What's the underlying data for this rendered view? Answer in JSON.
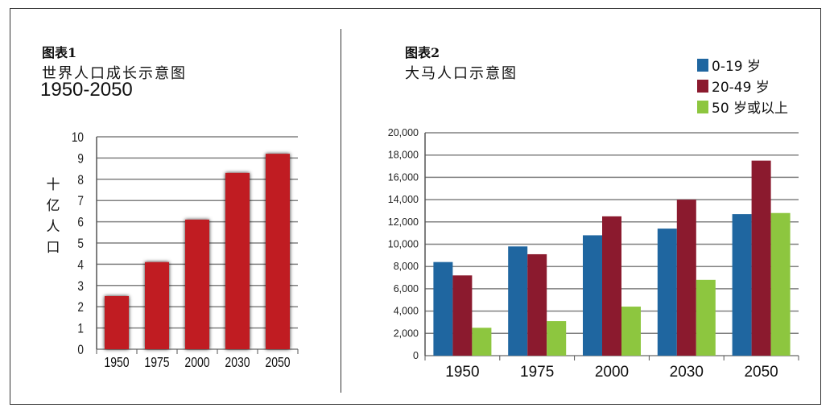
{
  "left_chart": {
    "figure_label": "图表1",
    "title": "世界人口成长示意图",
    "subtitle": "1950-2050",
    "ylabel_chars": [
      "十",
      "亿",
      "人",
      "口"
    ]
  },
  "right_chart": {
    "figure_label": "图表2",
    "title": "大马人口示意图"
  },
  "colors": {
    "left_bar": "#c01c24",
    "age_0_19": "#1f66a0",
    "age_20_49": "#8b1a2e",
    "age_50_plus": "#8dc63f",
    "grid": "#808080"
  },
  "chart_data": [
    {
      "type": "bar",
      "title": "世界人口成长示意图 1950-2050",
      "ylabel": "十亿人口",
      "categories": [
        "1950",
        "1975",
        "2000",
        "2030",
        "2050"
      ],
      "values": [
        2.5,
        4.1,
        6.1,
        8.3,
        9.2
      ],
      "ylim": [
        0,
        10
      ],
      "yticks": [
        "0",
        "1",
        "2",
        "3",
        "4",
        "5",
        "6",
        "7",
        "8",
        "9",
        "10"
      ],
      "grid": true
    },
    {
      "type": "bar",
      "title": "大马人口示意图",
      "categories": [
        "1950",
        "1975",
        "2000",
        "2030",
        "2050"
      ],
      "series": [
        {
          "name": "0-19 岁",
          "values": [
            8400,
            9800,
            10800,
            11400,
            12700
          ]
        },
        {
          "name": "20-49 岁",
          "values": [
            7200,
            9100,
            12500,
            14000,
            17500
          ]
        },
        {
          "name": "50 岁或以上",
          "values": [
            2500,
            3100,
            4400,
            6800,
            12800
          ]
        }
      ],
      "ylim": [
        0,
        20000
      ],
      "yticks": [
        "0",
        "2,000",
        "4,000",
        "6,000",
        "8,000",
        "10,000",
        "12,000",
        "14,000",
        "16,000",
        "18,000",
        "20,000"
      ],
      "legend_position": "top-right",
      "grid": true
    }
  ]
}
